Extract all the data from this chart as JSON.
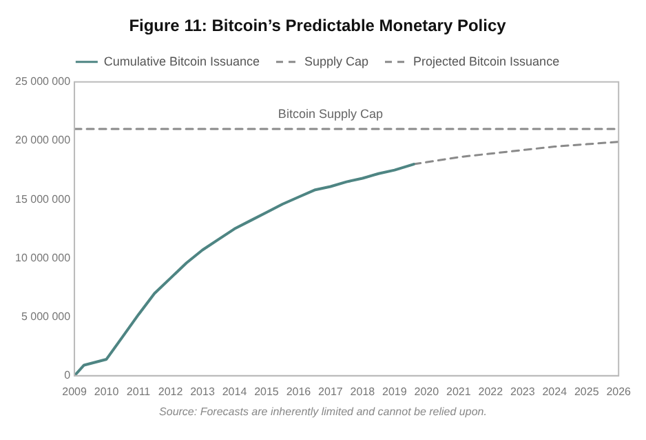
{
  "chart_data": {
    "type": "line",
    "title": "Figure 11: Bitcoin’s Predictable Monetary Policy",
    "series": [
      {
        "name": "Cumulative Bitcoin Issuance",
        "color": "#4e8583",
        "line_style": "solid",
        "x": [
          2009,
          2009.3,
          2010,
          2010.5,
          2011,
          2011.5,
          2012,
          2012.5,
          2013,
          2013.5,
          2014,
          2014.5,
          2015,
          2015.5,
          2016,
          2016.5,
          2017,
          2017.5,
          2018,
          2018.5,
          2019,
          2019.6
        ],
        "values": [
          0,
          900000,
          1400000,
          3300000,
          5200000,
          7000000,
          8300000,
          9600000,
          10700000,
          11600000,
          12500000,
          13200000,
          13900000,
          14600000,
          15200000,
          15800000,
          16100000,
          16500000,
          16800000,
          17200000,
          17500000,
          18000000
        ]
      },
      {
        "name": "Supply Cap",
        "color": "#8a8a8a",
        "line_style": "dashed",
        "x": [
          2009,
          2026
        ],
        "values": [
          21000000,
          21000000
        ]
      },
      {
        "name": "Projected Bitcoin Issuance",
        "color": "#8a8a8a",
        "line_style": "dashed",
        "x": [
          2019.6,
          2021,
          2022,
          2023,
          2024,
          2025,
          2026
        ],
        "values": [
          18000000,
          18600000,
          18900000,
          19200000,
          19500000,
          19700000,
          19900000
        ]
      }
    ],
    "xlim": [
      2009,
      2026
    ],
    "xticks": [
      2009,
      2010,
      2011,
      2012,
      2013,
      2014,
      2015,
      2016,
      2017,
      2018,
      2019,
      2020,
      2021,
      2022,
      2023,
      2024,
      2025,
      2026
    ],
    "ylim": [
      0,
      25000000
    ],
    "yticks": [
      {
        "value": 0,
        "label": "0"
      },
      {
        "value": 5000000,
        "label": "5 000 000"
      },
      {
        "value": 10000000,
        "label": "10 000 000"
      },
      {
        "value": 15000000,
        "label": "15 000 000"
      },
      {
        "value": 20000000,
        "label": "20 000 000"
      },
      {
        "value": 25000000,
        "label": "25 000 000"
      }
    ],
    "grid": false,
    "legend": "top",
    "marker": "none",
    "annotations": [
      {
        "text": "Bitcoin Supply Cap",
        "x": 2017,
        "y": 21000000
      },
      "Source: Forecasts are inherently limited and cannot be relied upon."
    ]
  }
}
